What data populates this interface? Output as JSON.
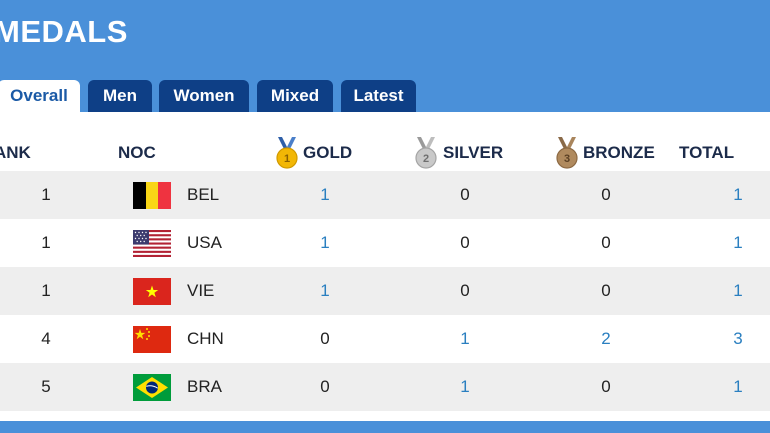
{
  "header": {
    "title": "MEDALS"
  },
  "tabs": [
    {
      "label": "Overall",
      "active": true
    },
    {
      "label": "Men"
    },
    {
      "label": "Women"
    },
    {
      "label": "Mixed"
    },
    {
      "label": "Latest"
    }
  ],
  "columns": {
    "rank": "ANK",
    "noc": "NOC",
    "gold": "GOLD",
    "silver": "SILVER",
    "bronze": "BRONZE",
    "total": "TOTAL"
  },
  "medal_icons": {
    "gold": "1",
    "silver": "2",
    "bronze": "3"
  },
  "rows": [
    {
      "rank": "1",
      "noc": "BEL",
      "flag": "belgium-flag-icon",
      "gold": "1",
      "silver": "0",
      "bronze": "0",
      "total": "1"
    },
    {
      "rank": "1",
      "noc": "USA",
      "flag": "usa-flag-icon",
      "gold": "1",
      "silver": "0",
      "bronze": "0",
      "total": "1"
    },
    {
      "rank": "1",
      "noc": "VIE",
      "flag": "vietnam-flag-icon",
      "gold": "1",
      "silver": "0",
      "bronze": "0",
      "total": "1"
    },
    {
      "rank": "4",
      "noc": "CHN",
      "flag": "china-flag-icon",
      "gold": "0",
      "silver": "1",
      "bronze": "2",
      "total": "3"
    },
    {
      "rank": "5",
      "noc": "BRA",
      "flag": "brazil-flag-icon",
      "gold": "0",
      "silver": "1",
      "bronze": "0",
      "total": "1"
    }
  ],
  "colors": {
    "header_blue": "#4a90d9",
    "tab_navy": "#0e3f86",
    "link_blue": "#2a7fc0",
    "row_shade": "#eeeeee",
    "gold": "#f2b705",
    "silver": "#b7b7b7",
    "bronze": "#a9855c"
  }
}
